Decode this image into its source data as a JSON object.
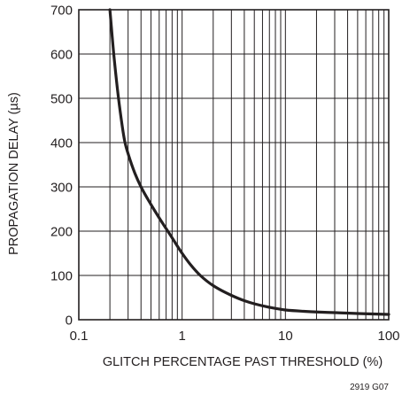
{
  "chart_data": {
    "type": "line",
    "xscale": "log",
    "xlim": [
      0.1,
      100
    ],
    "ylim": [
      0,
      700
    ],
    "xticks": [
      0.1,
      1,
      10,
      100
    ],
    "xtick_labels": [
      "0.1",
      "1",
      "10",
      "100"
    ],
    "yticks": [
      0,
      100,
      200,
      300,
      400,
      500,
      600,
      700
    ],
    "ytick_labels": [
      "0",
      "100",
      "200",
      "300",
      "400",
      "500",
      "600",
      "700"
    ],
    "xlabel": "GLITCH PERCENTAGE PAST THRESHOLD (%)",
    "ylabel": "PROPAGATION DELAY (µs)",
    "grid": true,
    "line_color": "#231f20",
    "series": [
      {
        "x": [
          0.2,
          0.22,
          0.25,
          0.28,
          0.3,
          0.35,
          0.4,
          0.5,
          0.6,
          0.8,
          1,
          1.2,
          1.5,
          2,
          3,
          4,
          5,
          7,
          10,
          15,
          20,
          30,
          50,
          70,
          100
        ],
        "y": [
          700,
          590,
          475,
          400,
          375,
          330,
          300,
          260,
          230,
          185,
          150,
          125,
          100,
          77,
          55,
          43,
          36,
          28,
          22,
          19,
          17.5,
          16,
          14,
          13,
          12
        ]
      }
    ]
  },
  "figure_code": "2919 G07"
}
